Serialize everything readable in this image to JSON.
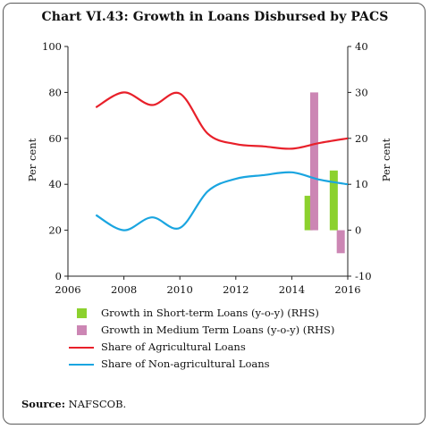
{
  "title": "Chart VI.43: Growth in Loans Disbursed by PACS",
  "source_label": "Source:",
  "source_text": "NAFSCOB.",
  "chart_data": {
    "type": "line+bar",
    "x_ticks": [
      "2006",
      "2008",
      "2010",
      "2012",
      "2014",
      "2016"
    ],
    "xlim": [
      2006,
      2016
    ],
    "ylabel_left": "Per cent",
    "ylabel_right": "Per cent",
    "ylim_left": [
      0,
      100
    ],
    "ylim_right": [
      -10,
      40
    ],
    "y_ticks_left": [
      "0",
      "20",
      "40",
      "60",
      "80",
      "100"
    ],
    "y_ticks_right": [
      "-10",
      "0",
      "10",
      "20",
      "30",
      "40"
    ],
    "grid": false,
    "legend_position": "bottom",
    "lines": [
      {
        "name": "Share of Agricultural Loans",
        "color": "#e8202a",
        "axis": "left",
        "x": [
          2007,
          2008,
          2009,
          2010,
          2011,
          2012,
          2013,
          2014,
          2015,
          2016
        ],
        "y": [
          73.5,
          80,
          74.5,
          79.5,
          62,
          57.5,
          56.5,
          55.5,
          58,
          60
        ]
      },
      {
        "name": "Share of Non-agricultural Loans",
        "color": "#1aa5e0",
        "axis": "right",
        "x": [
          2007,
          2008,
          2009,
          2010,
          2011,
          2012,
          2013,
          2014,
          2015,
          2016
        ],
        "y": [
          3.3,
          0,
          2.8,
          0.5,
          8.5,
          11.2,
          12,
          12.6,
          11,
          10
        ]
      }
    ],
    "bars": [
      {
        "name": "Growth in Short-term Loans (y-o-y) (RHS)",
        "color": "#8cd12e",
        "axis": "right",
        "x": [
          2014.6,
          2015.5
        ],
        "values": [
          7.5,
          13
        ]
      },
      {
        "name": "Growth in Medium Term Loans (y-o-y) (RHS)",
        "color": "#cc86b4",
        "axis": "right",
        "x": [
          2014.8,
          2015.75
        ],
        "values": [
          30,
          -5
        ]
      }
    ]
  },
  "legend": [
    {
      "label": "Growth in Short-term Loans (y-o-y) (RHS)",
      "kind": "box",
      "color": "#8cd12e"
    },
    {
      "label": "Growth in Medium Term Loans (y-o-y) (RHS)",
      "kind": "box",
      "color": "#cc86b4"
    },
    {
      "label": "Share of Agricultural Loans",
      "kind": "line",
      "color": "#e8202a"
    },
    {
      "label": "Share of Non-agricultural Loans",
      "kind": "line",
      "color": "#1aa5e0"
    }
  ]
}
